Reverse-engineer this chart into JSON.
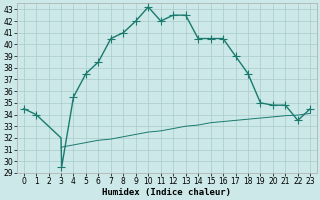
{
  "title": "",
  "xlabel": "Humidex (Indice chaleur)",
  "background_color": "#cce8e8",
  "grid_color": "#aacccc",
  "line_color": "#1a7a6e",
  "xlim": [
    -0.5,
    23.5
  ],
  "ylim": [
    29,
    43.5
  ],
  "yticks": [
    29,
    30,
    31,
    32,
    33,
    34,
    35,
    36,
    37,
    38,
    39,
    40,
    41,
    42,
    43
  ],
  "xticks": [
    0,
    1,
    2,
    3,
    4,
    5,
    6,
    7,
    8,
    9,
    10,
    11,
    12,
    13,
    14,
    15,
    16,
    17,
    18,
    19,
    20,
    21,
    22,
    23
  ],
  "main_x": [
    0,
    1,
    3,
    3.05,
    4,
    5,
    6,
    7,
    8,
    9,
    10,
    11,
    12,
    13,
    14,
    15,
    16,
    17,
    18,
    19,
    20,
    21,
    22,
    23
  ],
  "main_y": [
    34.5,
    34.0,
    32.0,
    29.5,
    35.5,
    37.5,
    38.5,
    40.5,
    41.0,
    42.0,
    43.2,
    42.0,
    42.5,
    42.5,
    40.5,
    40.5,
    40.5,
    39.0,
    37.5,
    35.0,
    34.8,
    34.8,
    33.5,
    34.5
  ],
  "line2_x": [
    3,
    4,
    5,
    6,
    7,
    8,
    9,
    10,
    11,
    12,
    13,
    14,
    15,
    16,
    17,
    18,
    19,
    20,
    21,
    22,
    23
  ],
  "line2_y": [
    31.2,
    31.4,
    31.6,
    31.8,
    31.9,
    32.1,
    32.3,
    32.5,
    32.6,
    32.8,
    33.0,
    33.1,
    33.3,
    33.4,
    33.5,
    33.6,
    33.7,
    33.8,
    33.9,
    33.95,
    34.1
  ],
  "marker_x": [
    0,
    1,
    3,
    4,
    5,
    6,
    7,
    8,
    9,
    10,
    11,
    12,
    13,
    14,
    15,
    16,
    17,
    18,
    19,
    20,
    21,
    22,
    23
  ],
  "marker_y": [
    34.5,
    34.0,
    29.5,
    35.5,
    37.5,
    38.5,
    40.5,
    41.0,
    42.0,
    43.2,
    42.0,
    42.5,
    42.5,
    40.5,
    40.5,
    40.5,
    39.0,
    37.5,
    35.0,
    34.8,
    34.8,
    33.5,
    34.5
  ],
  "linewidth": 1.0,
  "markersize": 3.0,
  "tick_fontsize": 5.5,
  "xlabel_fontsize": 6.5
}
